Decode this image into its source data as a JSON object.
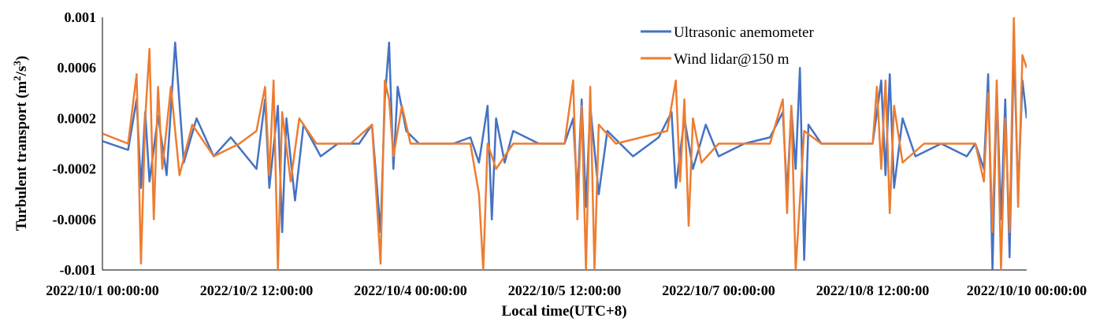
{
  "chart_data": {
    "type": "line",
    "xlabel": "Local time(UTC+8)",
    "ylabel": "Turbulent transport (m",
    "ylabel_sup1": "2",
    "ylabel_mid": "/s",
    "ylabel_sup2": "3",
    "ylabel_end": ")",
    "x_range": [
      "2022/10/1 00:00:00",
      "2022/10/10 00:00:00"
    ],
    "x_ticks": [
      "2022/10/1 00:00:00",
      "2022/10/2 12:00:00",
      "2022/10/4 00:00:00",
      "2022/10/5 12:00:00",
      "2022/10/7 00:00:00",
      "2022/10/8 12:00:00",
      "2022/10/10 00:00:00"
    ],
    "ylim": [
      -0.001,
      0.001
    ],
    "y_ticks": [
      "0.001",
      "0.0006",
      "0.0002",
      "-0.0002",
      "-0.0006",
      "-0.001"
    ],
    "y_tick_values": [
      0.001,
      0.0006,
      0.0002,
      -0.0002,
      -0.0006,
      -0.001
    ],
    "grid": false,
    "legend_position": "top-right",
    "series": [
      {
        "name": "Ultrasonic anemometer",
        "color": "#4472C4",
        "points": [
          [
            "2022/10/1 00:00:00",
            2e-05
          ],
          [
            "2022/10/1 06:00:00",
            -5e-05
          ],
          [
            "2022/10/1 08:00:00",
            0.00035
          ],
          [
            "2022/10/1 09:00:00",
            -0.00035
          ],
          [
            "2022/10/1 10:00:00",
            0.00025
          ],
          [
            "2022/10/1 11:00:00",
            -0.0003
          ],
          [
            "2022/10/1 13:00:00",
            0.00022
          ],
          [
            "2022/10/1 15:00:00",
            -0.00025
          ],
          [
            "2022/10/1 17:00:00",
            0.0008
          ],
          [
            "2022/10/1 19:00:00",
            -0.00015
          ],
          [
            "2022/10/1 22:00:00",
            0.0002
          ],
          [
            "2022/10/2 02:00:00",
            -0.0001
          ],
          [
            "2022/10/2 06:00:00",
            5e-05
          ],
          [
            "2022/10/2 12:00:00",
            -0.0002
          ],
          [
            "2022/10/2 14:00:00",
            0.00035
          ],
          [
            "2022/10/2 15:00:00",
            -0.00035
          ],
          [
            "2022/10/2 17:00:00",
            0.0003
          ],
          [
            "2022/10/2 18:00:00",
            -0.0007
          ],
          [
            "2022/10/2 19:00:00",
            0.0002
          ],
          [
            "2022/10/2 21:00:00",
            -0.00045
          ],
          [
            "2022/10/2 23:00:00",
            0.00015
          ],
          [
            "2022/10/3 03:00:00",
            -0.0001
          ],
          [
            "2022/10/3 07:00:00",
            0.0
          ],
          [
            "2022/10/3 12:00:00",
            0.0
          ],
          [
            "2022/10/3 15:00:00",
            0.00015
          ],
          [
            "2022/10/3 17:00:00",
            -0.0007
          ],
          [
            "2022/10/3 18:00:00",
            0.00035
          ],
          [
            "2022/10/3 19:00:00",
            0.0008
          ],
          [
            "2022/10/3 20:00:00",
            -0.0002
          ],
          [
            "2022/10/3 21:00:00",
            0.00045
          ],
          [
            "2022/10/3 23:00:00",
            0.0001
          ],
          [
            "2022/10/4 02:00:00",
            0.0
          ],
          [
            "2022/10/4 10:00:00",
            0.0
          ],
          [
            "2022/10/4 14:00:00",
            5e-05
          ],
          [
            "2022/10/4 16:00:00",
            -0.00015
          ],
          [
            "2022/10/4 18:00:00",
            0.0003
          ],
          [
            "2022/10/4 19:00:00",
            -0.0006
          ],
          [
            "2022/10/4 20:00:00",
            0.0002
          ],
          [
            "2022/10/4 22:00:00",
            -0.00015
          ],
          [
            "2022/10/5 00:00:00",
            0.0001
          ],
          [
            "2022/10/5 06:00:00",
            0.0
          ],
          [
            "2022/10/5 12:00:00",
            0.0
          ],
          [
            "2022/10/5 14:00:00",
            0.0002
          ],
          [
            "2022/10/5 15:00:00",
            -0.0004
          ],
          [
            "2022/10/5 16:00:00",
            0.00035
          ],
          [
            "2022/10/5 17:00:00",
            -0.0005
          ],
          [
            "2022/10/5 18:00:00",
            0.0003
          ],
          [
            "2022/10/5 20:00:00",
            -0.0004
          ],
          [
            "2022/10/5 22:00:00",
            0.0001
          ],
          [
            "2022/10/6 04:00:00",
            -0.0001
          ],
          [
            "2022/10/6 10:00:00",
            5e-05
          ],
          [
            "2022/10/6 13:00:00",
            0.00025
          ],
          [
            "2022/10/6 14:00:00",
            -0.00035
          ],
          [
            "2022/10/6 16:00:00",
            0.0002
          ],
          [
            "2022/10/6 18:00:00",
            -0.0002
          ],
          [
            "2022/10/6 21:00:00",
            0.00015
          ],
          [
            "2022/10/7 00:00:00",
            -0.0001
          ],
          [
            "2022/10/7 06:00:00",
            0.0
          ],
          [
            "2022/10/7 12:00:00",
            5e-05
          ],
          [
            "2022/10/7 15:00:00",
            0.00025
          ],
          [
            "2022/10/7 16:00:00",
            -0.0004
          ],
          [
            "2022/10/7 17:00:00",
            0.00028
          ],
          [
            "2022/10/7 18:00:00",
            -0.0002
          ],
          [
            "2022/10/7 19:00:00",
            0.0006
          ],
          [
            "2022/10/7 20:00:00",
            -0.00092
          ],
          [
            "2022/10/7 21:00:00",
            0.00015
          ],
          [
            "2022/10/8 00:00:00",
            0.0
          ],
          [
            "2022/10/8 06:00:00",
            0.0
          ],
          [
            "2022/10/8 12:00:00",
            0.0
          ],
          [
            "2022/10/8 14:00:00",
            0.0005
          ],
          [
            "2022/10/8 15:00:00",
            -0.00025
          ],
          [
            "2022/10/8 16:00:00",
            0.00055
          ],
          [
            "2022/10/8 17:00:00",
            -0.00035
          ],
          [
            "2022/10/8 19:00:00",
            0.0002
          ],
          [
            "2022/10/8 22:00:00",
            -0.0001
          ],
          [
            "2022/10/9 04:00:00",
            0.0
          ],
          [
            "2022/10/9 10:00:00",
            -0.0001
          ],
          [
            "2022/10/9 12:00:00",
            0.0
          ],
          [
            "2022/10/9 14:00:00",
            -0.0002
          ],
          [
            "2022/10/9 15:00:00",
            0.00055
          ],
          [
            "2022/10/9 16:00:00",
            -0.001
          ],
          [
            "2022/10/9 17:00:00",
            0.00045
          ],
          [
            "2022/10/9 18:00:00",
            -0.0006
          ],
          [
            "2022/10/9 19:00:00",
            0.00035
          ],
          [
            "2022/10/9 20:00:00",
            -0.0009
          ],
          [
            "2022/10/9 21:00:00",
            0.0008
          ],
          [
            "2022/10/9 22:00:00",
            -0.0004
          ],
          [
            "2022/10/9 23:00:00",
            0.0005
          ],
          [
            "2022/10/10 00:00:00",
            0.0002
          ]
        ]
      },
      {
        "name": "Wind lidar@150 m",
        "color": "#ED7D31",
        "points": [
          [
            "2022/10/1 00:00:00",
            8e-05
          ],
          [
            "2022/10/1 06:00:00",
            0.0
          ],
          [
            "2022/10/1 08:00:00",
            0.00055
          ],
          [
            "2022/10/1 09:00:00",
            -0.00095
          ],
          [
            "2022/10/1 10:00:00",
            0.0002
          ],
          [
            "2022/10/1 11:00:00",
            0.00075
          ],
          [
            "2022/10/1 12:00:00",
            -0.0006
          ],
          [
            "2022/10/1 13:00:00",
            0.00045
          ],
          [
            "2022/10/1 14:00:00",
            -0.0002
          ],
          [
            "2022/10/1 16:00:00",
            0.00045
          ],
          [
            "2022/10/1 18:00:00",
            -0.00025
          ],
          [
            "2022/10/1 21:00:00",
            0.00015
          ],
          [
            "2022/10/2 02:00:00",
            -0.0001
          ],
          [
            "2022/10/2 08:00:00",
            0.0
          ],
          [
            "2022/10/2 12:00:00",
            0.0001
          ],
          [
            "2022/10/2 14:00:00",
            0.00045
          ],
          [
            "2022/10/2 15:00:00",
            -0.00025
          ],
          [
            "2022/10/2 16:00:00",
            0.0005
          ],
          [
            "2022/10/2 17:00:00",
            -0.001
          ],
          [
            "2022/10/2 18:00:00",
            0.00025
          ],
          [
            "2022/10/2 20:00:00",
            -0.0003
          ],
          [
            "2022/10/2 22:00:00",
            0.0002
          ],
          [
            "2022/10/3 02:00:00",
            0.0
          ],
          [
            "2022/10/3 10:00:00",
            0.0
          ],
          [
            "2022/10/3 15:00:00",
            0.00015
          ],
          [
            "2022/10/3 17:00:00",
            -0.00095
          ],
          [
            "2022/10/3 18:00:00",
            0.0005
          ],
          [
            "2022/10/3 19:00:00",
            0.00035
          ],
          [
            "2022/10/3 20:00:00",
            -0.0001
          ],
          [
            "2022/10/3 22:00:00",
            0.0003
          ],
          [
            "2022/10/4 00:00:00",
            0.0
          ],
          [
            "2022/10/4 10:00:00",
            0.0
          ],
          [
            "2022/10/4 14:00:00",
            0.0
          ],
          [
            "2022/10/4 16:00:00",
            -0.0004
          ],
          [
            "2022/10/4 17:00:00",
            -0.001
          ],
          [
            "2022/10/4 18:00:00",
            0.0
          ],
          [
            "2022/10/4 20:00:00",
            -0.0002
          ],
          [
            "2022/10/5 00:00:00",
            0.0
          ],
          [
            "2022/10/5 12:00:00",
            0.0
          ],
          [
            "2022/10/5 14:00:00",
            0.0005
          ],
          [
            "2022/10/5 15:00:00",
            -0.0006
          ],
          [
            "2022/10/5 16:00:00",
            0.0003
          ],
          [
            "2022/10/5 17:00:00",
            -0.001
          ],
          [
            "2022/10/5 18:00:00",
            0.00045
          ],
          [
            "2022/10/5 19:00:00",
            -0.001
          ],
          [
            "2022/10/5 20:00:00",
            0.00015
          ],
          [
            "2022/10/6 00:00:00",
            0.0
          ],
          [
            "2022/10/6 12:00:00",
            0.0001
          ],
          [
            "2022/10/6 14:00:00",
            0.0005
          ],
          [
            "2022/10/6 15:00:00",
            -0.0003
          ],
          [
            "2022/10/6 16:00:00",
            0.00035
          ],
          [
            "2022/10/6 17:00:00",
            -0.00065
          ],
          [
            "2022/10/6 18:00:00",
            0.0002
          ],
          [
            "2022/10/6 20:00:00",
            -0.00015
          ],
          [
            "2022/10/7 00:00:00",
            0.0
          ],
          [
            "2022/10/7 12:00:00",
            0.0
          ],
          [
            "2022/10/7 15:00:00",
            0.00035
          ],
          [
            "2022/10/7 16:00:00",
            -0.00055
          ],
          [
            "2022/10/7 17:00:00",
            0.0003
          ],
          [
            "2022/10/7 18:00:00",
            -0.001
          ],
          [
            "2022/10/7 20:00:00",
            0.0001
          ],
          [
            "2022/10/8 00:00:00",
            0.0
          ],
          [
            "2022/10/8 12:00:00",
            0.0
          ],
          [
            "2022/10/8 13:00:00",
            0.00045
          ],
          [
            "2022/10/8 14:00:00",
            -0.0002
          ],
          [
            "2022/10/8 15:00:00",
            0.0005
          ],
          [
            "2022/10/8 16:00:00",
            -0.00055
          ],
          [
            "2022/10/8 17:00:00",
            0.0003
          ],
          [
            "2022/10/8 19:00:00",
            -0.00015
          ],
          [
            "2022/10/9 00:00:00",
            0.0
          ],
          [
            "2022/10/9 12:00:00",
            0.0
          ],
          [
            "2022/10/9 14:00:00",
            -0.0003
          ],
          [
            "2022/10/9 15:00:00",
            0.0004
          ],
          [
            "2022/10/9 16:00:00",
            -0.0007
          ],
          [
            "2022/10/9 17:00:00",
            0.0005
          ],
          [
            "2022/10/9 18:00:00",
            -0.001
          ],
          [
            "2022/10/9 19:00:00",
            0.0002
          ],
          [
            "2022/10/9 20:00:00",
            -0.0007
          ],
          [
            "2022/10/9 21:00:00",
            0.001
          ],
          [
            "2022/10/9 22:00:00",
            -0.0005
          ],
          [
            "2022/10/9 23:00:00",
            0.0007
          ],
          [
            "2022/10/10 00:00:00",
            0.0006
          ]
        ]
      }
    ]
  }
}
